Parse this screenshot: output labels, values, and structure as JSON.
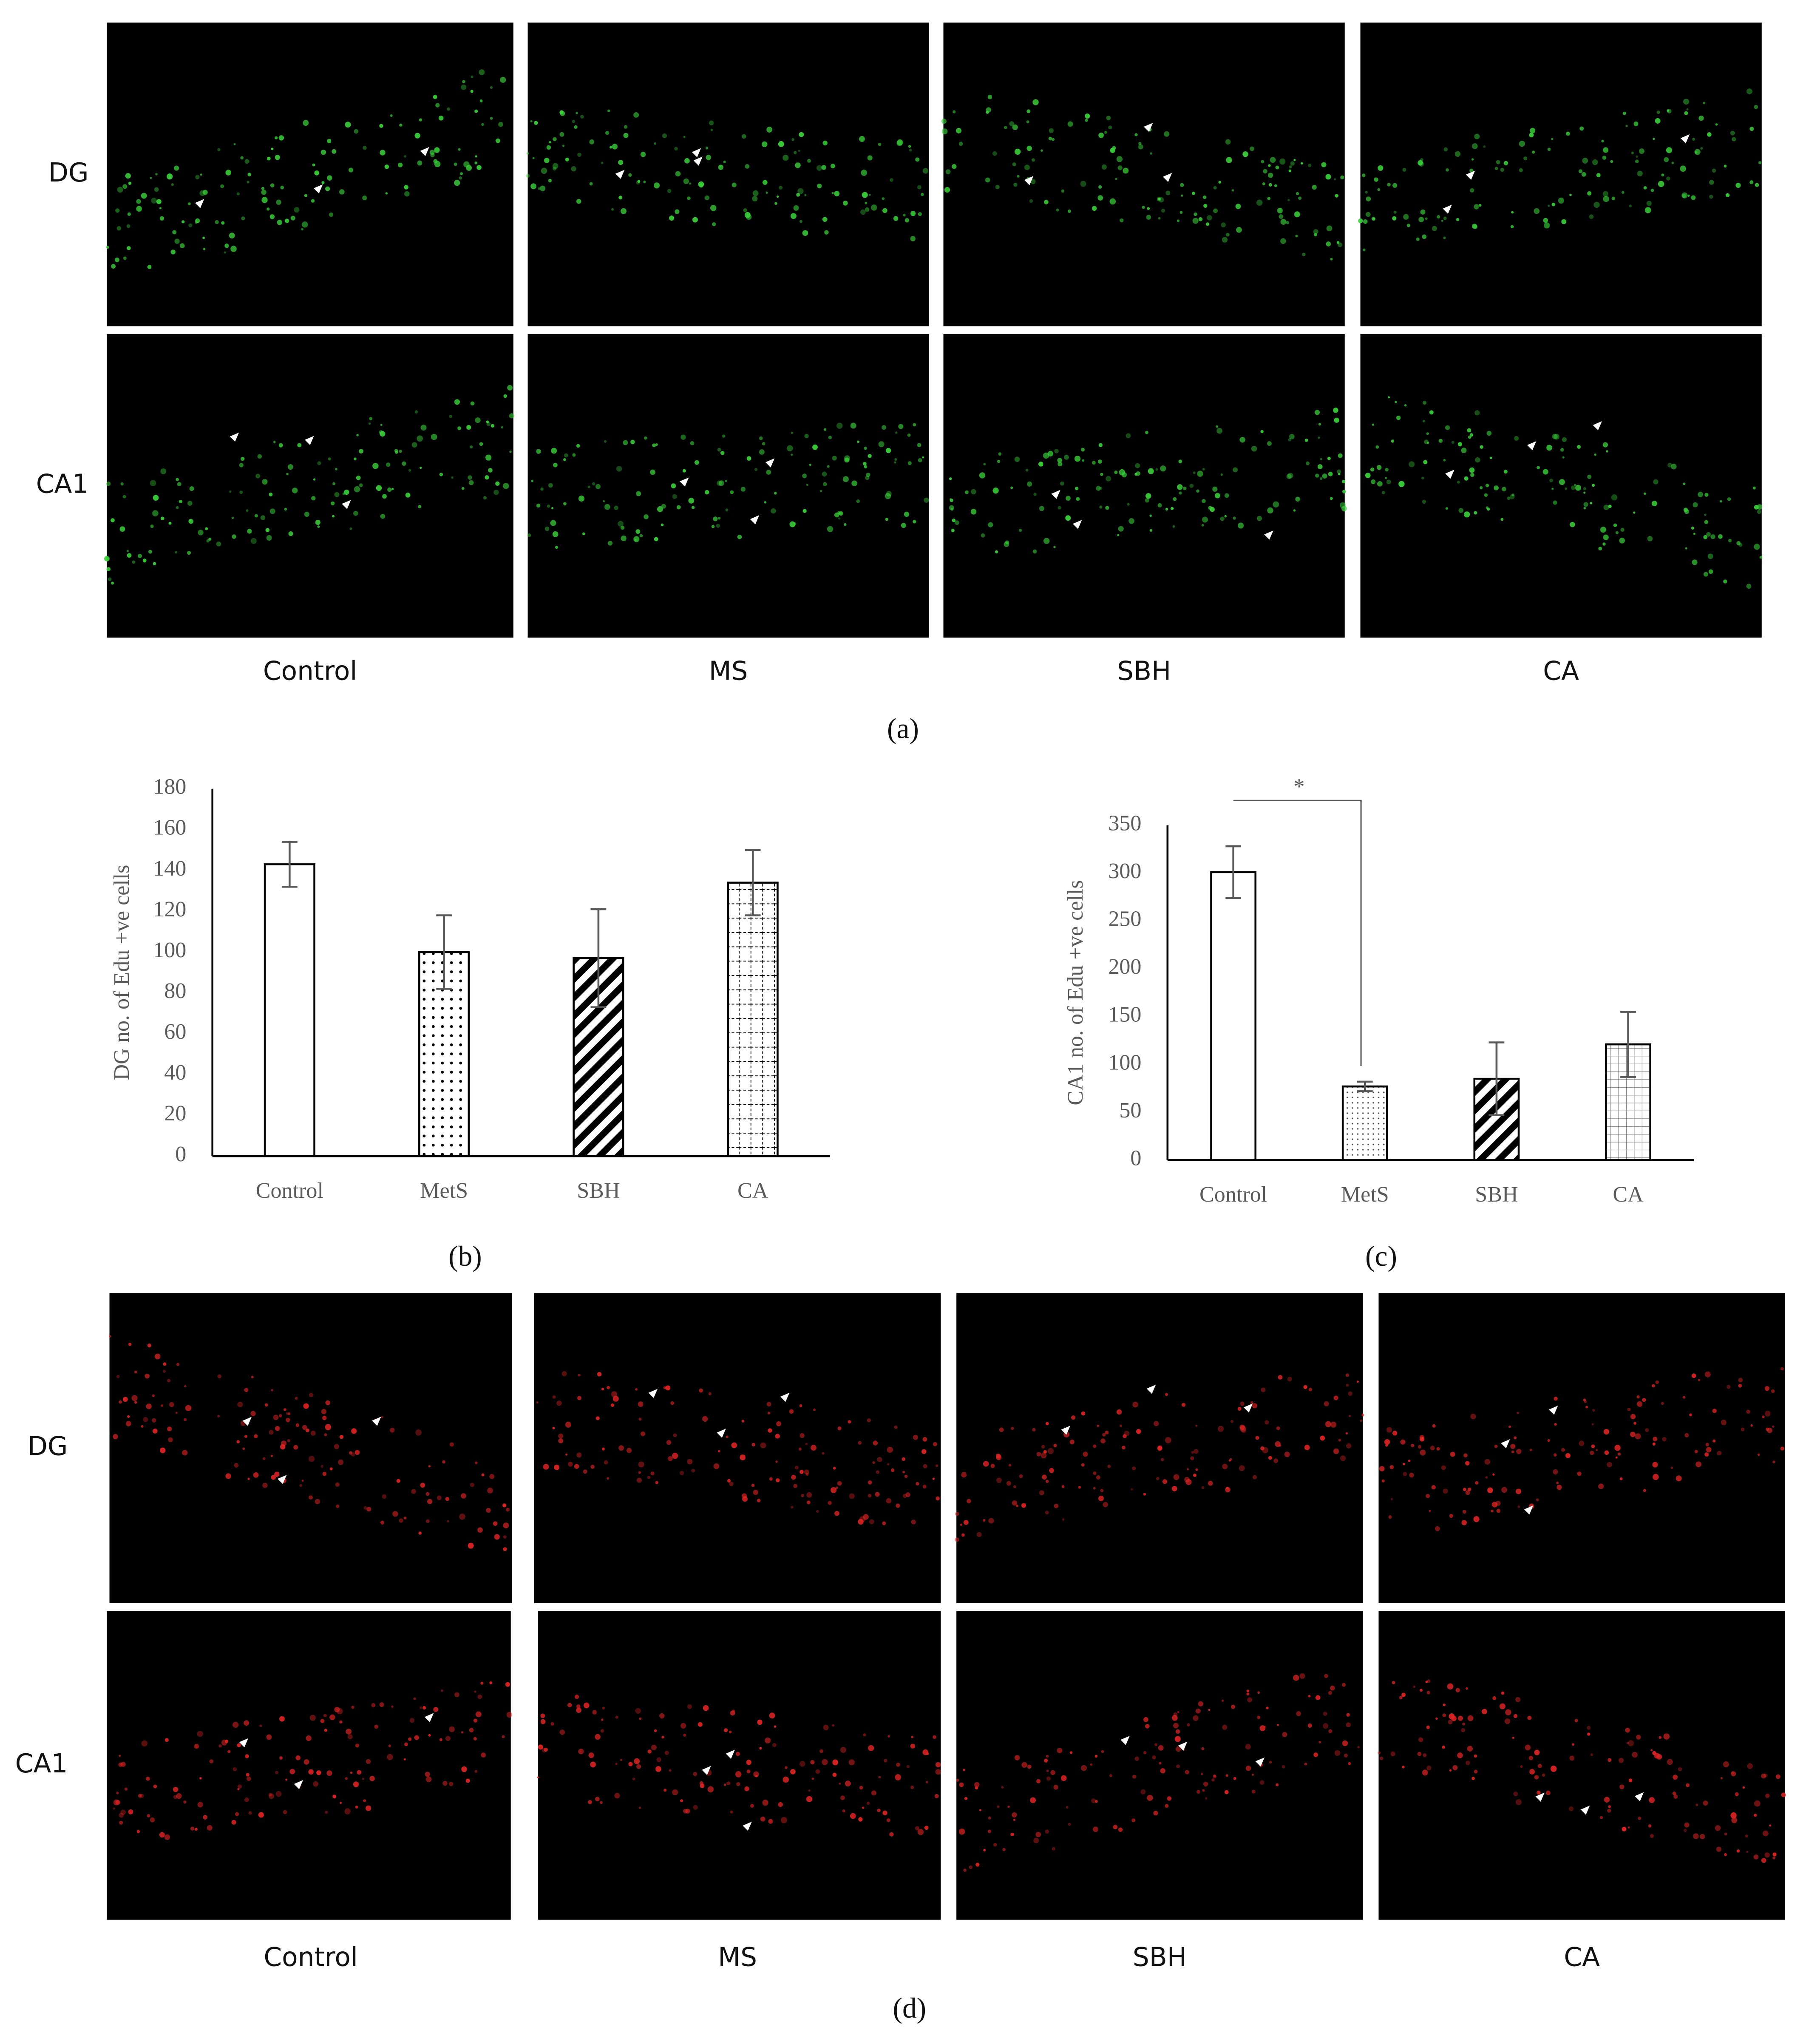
{
  "panel_a": {
    "row_labels": [
      "DG",
      "CA1"
    ],
    "column_labels": [
      "Control",
      "MS",
      "SBH",
      "CA"
    ],
    "caption": "(a)"
  },
  "chart_data": [
    {
      "type": "bar",
      "ylabel": "DG no. of Edu +ve cells",
      "categories": [
        "Control",
        "MetS",
        "SBH",
        "CA"
      ],
      "values": [
        143,
        100,
        97,
        134
      ],
      "errors": [
        11,
        18,
        24,
        16
      ],
      "patterns": [
        "none",
        "dots",
        "diagonal",
        "grid"
      ],
      "ylim": [
        0,
        180
      ],
      "yticks": [
        0,
        20,
        40,
        60,
        80,
        100,
        120,
        140,
        160,
        180
      ],
      "caption": "(b)"
    },
    {
      "type": "bar",
      "ylabel": "CA1 no. of Edu +ve cells",
      "categories": [
        "Control",
        "MetS",
        "SBH",
        "CA"
      ],
      "values": [
        301,
        77,
        85,
        121
      ],
      "errors": [
        27,
        5,
        38,
        34
      ],
      "patterns": [
        "none",
        "finedots",
        "diagonal",
        "finegrid"
      ],
      "ylim": [
        0,
        350
      ],
      "yticks": [
        0,
        50,
        100,
        150,
        200,
        250,
        300,
        350
      ],
      "annotation": "*",
      "caption": "(c)"
    }
  ],
  "panel_d": {
    "row_labels": [
      "DG",
      "CA1"
    ],
    "column_labels": [
      "Control",
      "MS",
      "SBH",
      "CA"
    ],
    "caption": "(d)"
  }
}
